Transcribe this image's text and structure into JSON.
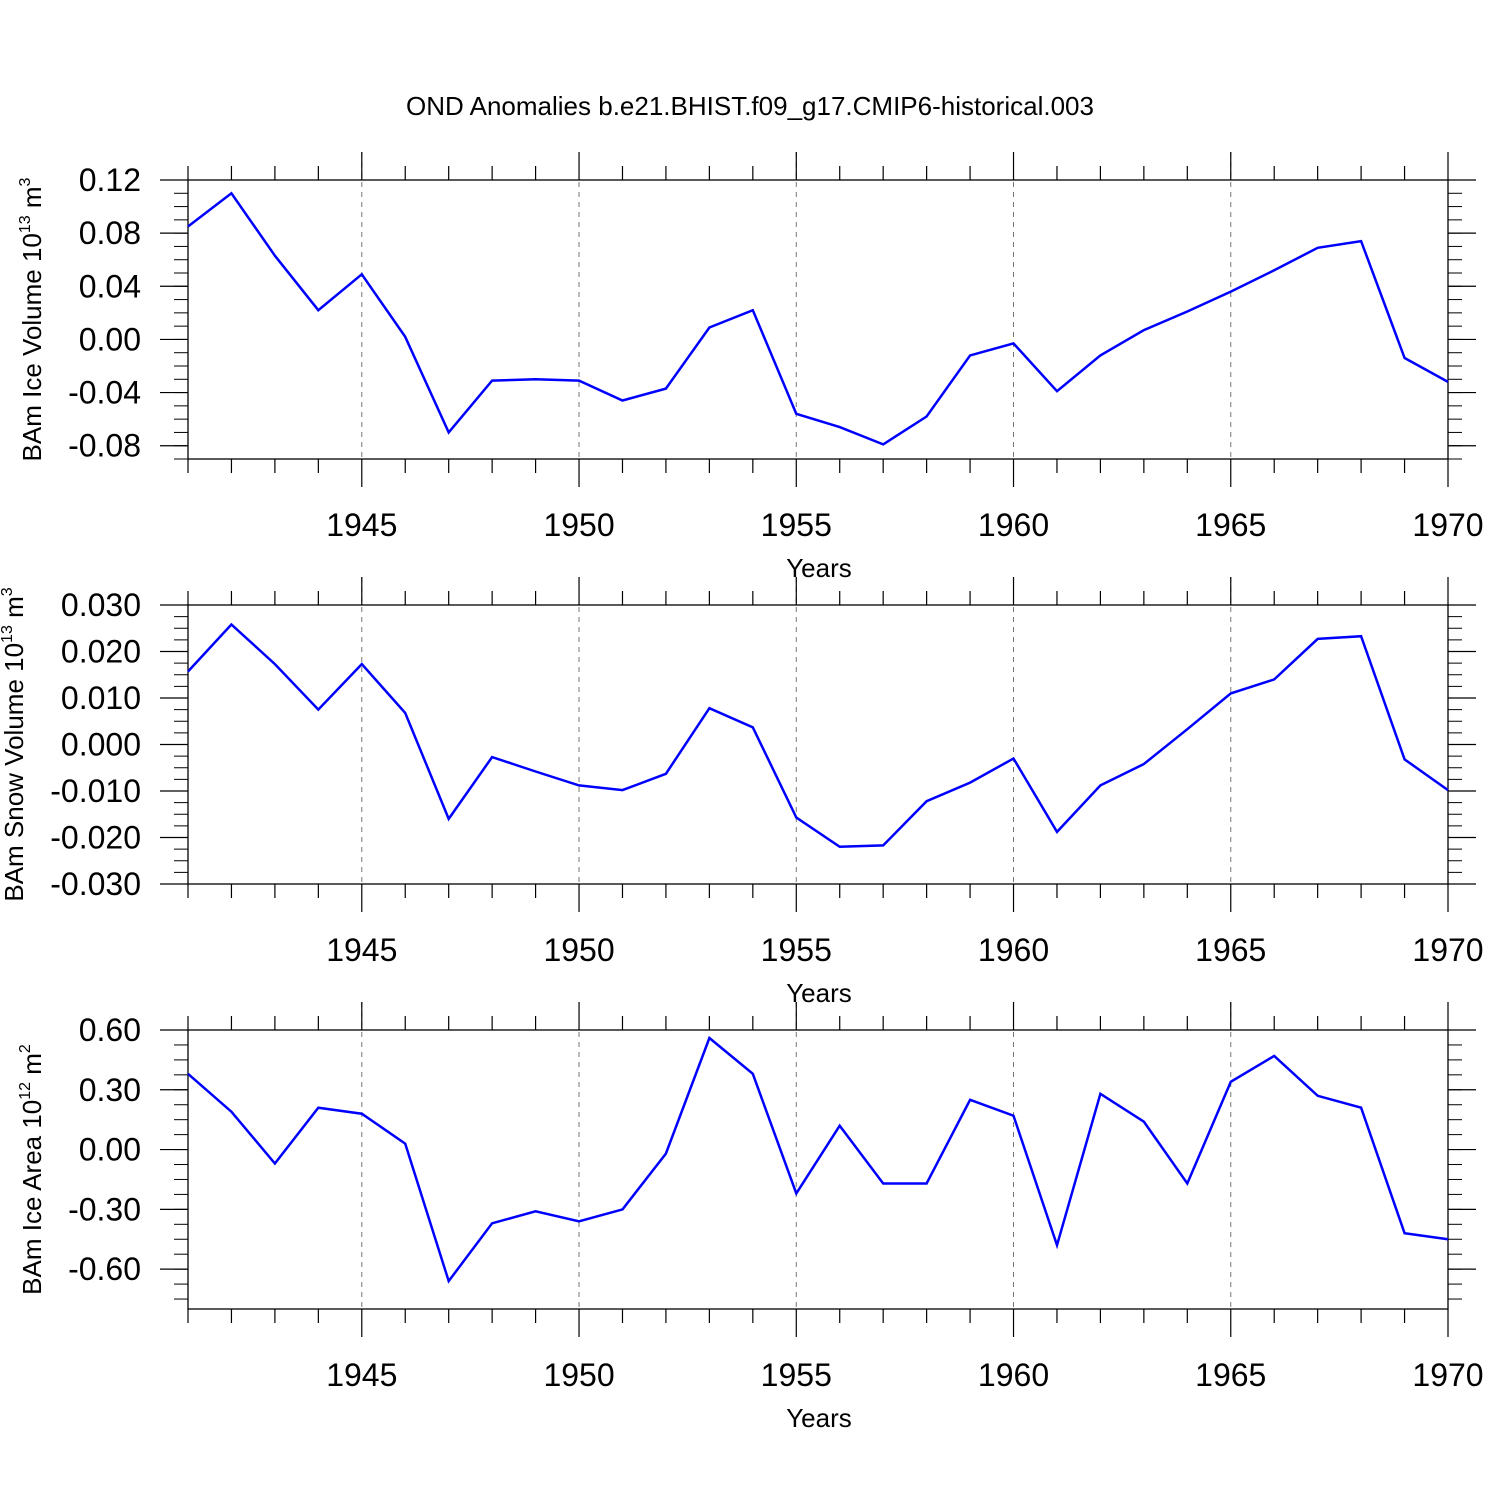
{
  "title": "OND Anomalies b.e21.BHIST.f09_g17.CMIP6-historical.003",
  "colors": {
    "line": "#0000ff",
    "axis": "#000000",
    "grid": "#777777"
  },
  "chart_data": [
    {
      "type": "line",
      "xlabel": "Years",
      "ylabel": {
        "text": "BAm Ice Volume 10",
        "exp": "13",
        "unit": " m",
        "unit_exp": "3"
      },
      "xlim": [
        1941,
        1970
      ],
      "ylim": [
        -0.09,
        0.12
      ],
      "yticks": [
        "0.12",
        "0.08",
        "0.04",
        "0.00",
        "-0.04",
        "-0.08"
      ],
      "ytick_values": [
        0.12,
        0.08,
        0.04,
        0.0,
        -0.04,
        -0.08
      ],
      "xticks": [
        "1945",
        "1950",
        "1955",
        "1960",
        "1965",
        "1970"
      ],
      "xtick_values": [
        1945,
        1950,
        1955,
        1960,
        1965,
        1970
      ],
      "grid": "vertical dashed at major x ticks",
      "x": [
        1941,
        1942,
        1943,
        1944,
        1945,
        1946,
        1947,
        1948,
        1949,
        1950,
        1951,
        1952,
        1953,
        1954,
        1955,
        1956,
        1957,
        1958,
        1959,
        1960,
        1961,
        1962,
        1963,
        1964,
        1965,
        1966,
        1967,
        1968,
        1969,
        1970
      ],
      "y": [
        0.085,
        0.11,
        0.063,
        0.022,
        0.049,
        0.002,
        -0.07,
        -0.031,
        -0.03,
        -0.031,
        -0.046,
        -0.037,
        0.009,
        0.022,
        -0.056,
        -0.066,
        -0.079,
        -0.058,
        -0.012,
        -0.003,
        -0.039,
        -0.012,
        0.007,
        0.021,
        0.036,
        0.052,
        0.069,
        0.074,
        -0.014,
        -0.032
      ]
    },
    {
      "type": "line",
      "xlabel": "Years",
      "ylabel": {
        "text": "BAm Snow Volume 10",
        "exp": "13",
        "unit": " m",
        "unit_exp": "3"
      },
      "xlim": [
        1941,
        1970
      ],
      "ylim": [
        -0.03,
        0.03
      ],
      "yticks": [
        "0.030",
        "0.020",
        "0.010",
        "0.000",
        "-0.010",
        "-0.020",
        "-0.030"
      ],
      "ytick_values": [
        0.03,
        0.02,
        0.01,
        0.0,
        -0.01,
        -0.02,
        -0.03
      ],
      "xticks": [
        "1945",
        "1950",
        "1955",
        "1960",
        "1965",
        "1970"
      ],
      "xtick_values": [
        1945,
        1950,
        1955,
        1960,
        1965,
        1970
      ],
      "grid": "vertical dashed at major x ticks",
      "x": [
        1941,
        1942,
        1943,
        1944,
        1945,
        1946,
        1947,
        1948,
        1949,
        1950,
        1951,
        1952,
        1953,
        1954,
        1955,
        1956,
        1957,
        1958,
        1959,
        1960,
        1961,
        1962,
        1963,
        1964,
        1965,
        1966,
        1967,
        1968,
        1969,
        1970
      ],
      "y": [
        0.0157,
        0.0258,
        0.0173,
        0.0075,
        0.0173,
        0.0068,
        -0.016,
        -0.0027,
        -0.0058,
        -0.0088,
        -0.0098,
        -0.0063,
        0.0078,
        0.0037,
        -0.0157,
        -0.022,
        -0.0217,
        -0.0122,
        -0.0082,
        -0.003,
        -0.0188,
        -0.0088,
        -0.0042,
        0.0033,
        0.011,
        0.014,
        0.0227,
        0.0233,
        -0.0032,
        -0.0098
      ]
    },
    {
      "type": "line",
      "xlabel": "Years",
      "ylabel": {
        "text": "BAm Ice Area 10",
        "exp": "12",
        "unit": " m",
        "unit_exp": "2"
      },
      "xlim": [
        1941,
        1970
      ],
      "ylim": [
        -0.8,
        0.6
      ],
      "yticks": [
        "0.60",
        "0.30",
        "0.00",
        "-0.30",
        "-0.60"
      ],
      "ytick_values": [
        0.6,
        0.3,
        0.0,
        -0.3,
        -0.6
      ],
      "xticks": [
        "1945",
        "1950",
        "1955",
        "1960",
        "1965",
        "1970"
      ],
      "xtick_values": [
        1945,
        1950,
        1955,
        1960,
        1965,
        1970
      ],
      "grid": "vertical dashed at major x ticks",
      "x": [
        1941,
        1942,
        1943,
        1944,
        1945,
        1946,
        1947,
        1948,
        1949,
        1950,
        1951,
        1952,
        1953,
        1954,
        1955,
        1956,
        1957,
        1958,
        1959,
        1960,
        1961,
        1962,
        1963,
        1964,
        1965,
        1966,
        1967,
        1968,
        1969,
        1970
      ],
      "y": [
        0.38,
        0.19,
        -0.07,
        0.21,
        0.18,
        0.03,
        -0.66,
        -0.37,
        -0.31,
        -0.36,
        -0.3,
        -0.02,
        0.56,
        0.38,
        -0.22,
        0.12,
        -0.17,
        -0.17,
        0.25,
        0.17,
        -0.48,
        0.28,
        0.14,
        -0.17,
        0.34,
        0.47,
        0.27,
        0.21,
        -0.42,
        -0.45
      ]
    }
  ]
}
